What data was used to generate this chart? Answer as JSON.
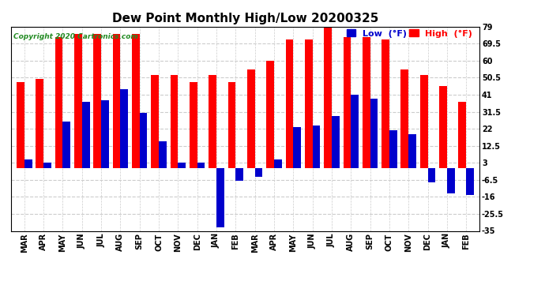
{
  "title": "Dew Point Monthly High/Low 20200325",
  "copyright": "Copyright 2020 Cartronics.com",
  "months": [
    "MAR",
    "APR",
    "MAY",
    "JUN",
    "JUL",
    "AUG",
    "SEP",
    "OCT",
    "NOV",
    "DEC",
    "JAN",
    "FEB",
    "MAR",
    "APR",
    "MAY",
    "JUN",
    "JUL",
    "AUG",
    "SEP",
    "OCT",
    "NOV",
    "DEC",
    "JAN",
    "FEB"
  ],
  "high_values": [
    48,
    50,
    73,
    75,
    75,
    75,
    75,
    52,
    52,
    48,
    52,
    48,
    55,
    60,
    72,
    72,
    79,
    73,
    73,
    72,
    55,
    52,
    46,
    37
  ],
  "low_values": [
    5,
    3,
    26,
    37,
    38,
    44,
    31,
    15,
    3,
    3,
    -33,
    -7,
    -5,
    5,
    23,
    24,
    29,
    41,
    39,
    21,
    19,
    -8,
    -14,
    -15
  ],
  "high_color": "#ff0000",
  "low_color": "#0000cc",
  "background_color": "#ffffff",
  "grid_color": "#cccccc",
  "ylim": [
    -35,
    79
  ],
  "yticks": [
    -35.0,
    -25.5,
    -16.0,
    -6.5,
    3.0,
    12.5,
    22.0,
    31.5,
    41.0,
    50.5,
    60.0,
    69.5,
    79.0
  ],
  "title_fontsize": 11,
  "label_fontsize": 8,
  "tick_fontsize": 7,
  "bar_width": 0.4
}
